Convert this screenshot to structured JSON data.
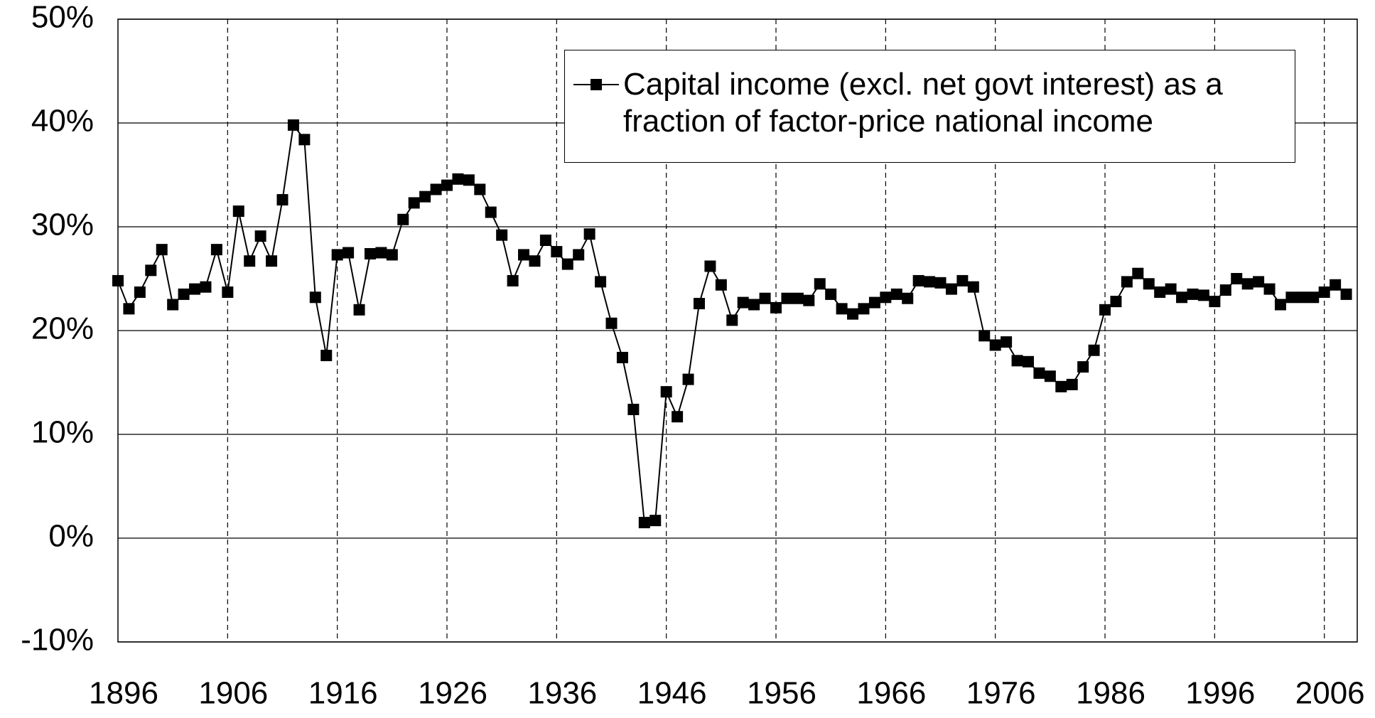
{
  "chart_data": {
    "type": "line",
    "x": [
      1896,
      1897,
      1898,
      1899,
      1900,
      1901,
      1902,
      1903,
      1904,
      1905,
      1906,
      1907,
      1908,
      1909,
      1910,
      1911,
      1912,
      1913,
      1914,
      1915,
      1916,
      1917,
      1918,
      1919,
      1920,
      1921,
      1922,
      1923,
      1924,
      1925,
      1926,
      1927,
      1928,
      1929,
      1930,
      1931,
      1932,
      1933,
      1934,
      1935,
      1936,
      1937,
      1938,
      1939,
      1940,
      1941,
      1942,
      1943,
      1944,
      1945,
      1946,
      1947,
      1948,
      1949,
      1950,
      1951,
      1952,
      1953,
      1954,
      1955,
      1956,
      1957,
      1958,
      1959,
      1960,
      1961,
      1962,
      1963,
      1964,
      1965,
      1966,
      1967,
      1968,
      1969,
      1970,
      1971,
      1972,
      1973,
      1974,
      1975,
      1976,
      1977,
      1978,
      1979,
      1980,
      1981,
      1982,
      1983,
      1984,
      1985,
      1986,
      1987,
      1988,
      1989,
      1990,
      1991,
      1992,
      1993,
      1994,
      1995,
      1996,
      1997,
      1998,
      1999,
      2000,
      2001,
      2002,
      2003,
      2004,
      2005,
      2006,
      2007,
      2008
    ],
    "series": [
      {
        "name": "Capital income (excl. net govt interest) as a fraction of factor-price national income",
        "color": "#000000",
        "values": [
          24.8,
          22.1,
          23.7,
          25.8,
          27.8,
          22.5,
          23.5,
          24.0,
          24.2,
          27.8,
          23.7,
          31.5,
          26.7,
          29.1,
          26.7,
          32.6,
          39.8,
          38.4,
          23.2,
          17.6,
          27.3,
          27.5,
          22.0,
          27.4,
          27.5,
          27.3,
          30.7,
          32.3,
          32.9,
          33.6,
          34.0,
          34.6,
          34.5,
          33.6,
          31.4,
          29.2,
          24.8,
          27.3,
          26.7,
          28.7,
          27.6,
          26.4,
          27.3,
          29.3,
          24.7,
          20.7,
          17.4,
          12.4,
          1.5,
          1.7,
          14.1,
          11.7,
          15.3,
          22.6,
          26.2,
          24.4,
          21.0,
          22.7,
          22.5,
          23.1,
          22.2,
          23.1,
          23.1,
          22.9,
          24.5,
          23.5,
          22.1,
          21.6,
          22.1,
          22.7,
          23.2,
          23.5,
          23.1,
          24.8,
          24.7,
          24.6,
          24.0,
          24.8,
          24.2,
          19.5,
          18.6,
          18.9,
          17.1,
          17.0,
          15.9,
          15.6,
          14.6,
          14.8,
          16.5,
          18.1,
          22.0,
          22.8,
          24.7,
          25.5,
          24.5,
          23.7,
          24.0,
          23.2,
          23.5,
          23.4,
          22.8,
          23.9,
          25.0,
          24.5,
          24.7,
          24.0,
          22.5,
          23.2,
          23.2,
          23.2,
          23.7,
          24.4,
          23.5
        ]
      }
    ],
    "xlim": [
      1896,
      2009
    ],
    "xticks": [
      1896,
      1906,
      1916,
      1926,
      1936,
      1946,
      1956,
      1966,
      1976,
      1986,
      1996,
      2006
    ],
    "ylim": [
      -10,
      50
    ],
    "yticks": [
      {
        "value": -10,
        "label": "-10%"
      },
      {
        "value": 0,
        "label": "0%"
      },
      {
        "value": 10,
        "label": "10%"
      },
      {
        "value": 20,
        "label": "20%"
      },
      {
        "value": 30,
        "label": "30%"
      },
      {
        "value": 40,
        "label": "40%"
      },
      {
        "value": 50,
        "label": "50%"
      }
    ],
    "grid": true,
    "legend": "top-right"
  }
}
